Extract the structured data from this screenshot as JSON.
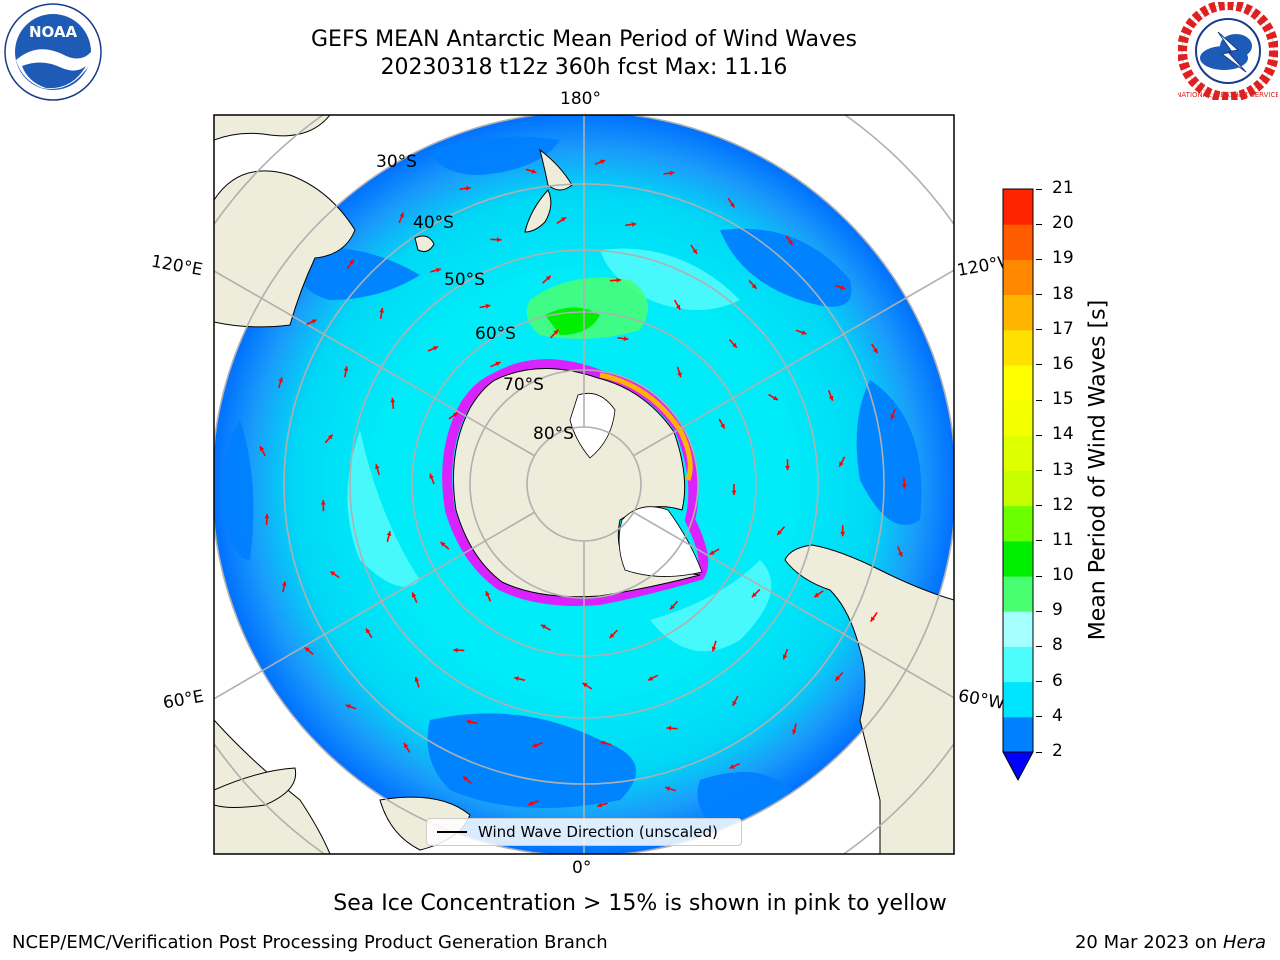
{
  "title": {
    "line1": "GEFS MEAN Antarctic Mean Period of Wind Waves",
    "line2": "20230318 t12z 360h fcst   Max: 11.16"
  },
  "logos": {
    "left": "noaa-logo",
    "left_text": "NOAA",
    "right": "nws-logo",
    "right_text": "NATIONAL WEATHER SERVICE"
  },
  "map": {
    "projection": "south-polar-stereographic",
    "longitude_labels": {
      "top": "180°",
      "bottom": "0°",
      "upper_left": "120°E",
      "upper_right": "120°W",
      "lower_left": "60°E",
      "lower_right": "60°W"
    },
    "latitude_labels": [
      "30°S",
      "40°S",
      "50°S",
      "60°S",
      "70°S",
      "80°S"
    ],
    "colors": {
      "land": "#eeecda",
      "ocean_low": "#0080ff",
      "ocean_mid": "#00ecf8",
      "ocean_light": "#4cfcfc",
      "arrow": "#ff0000",
      "sea_ice_edge": "#ff00ff"
    }
  },
  "legend": {
    "label": "Wind Wave Direction (unscaled)"
  },
  "colorbar": {
    "label": "Mean Period of Wind Waves [s]",
    "ticks": [
      "2",
      "4",
      "6",
      "8",
      "9",
      "10",
      "11",
      "12",
      "13",
      "14",
      "15",
      "16",
      "17",
      "18",
      "19",
      "20",
      "21"
    ],
    "colors": [
      "#0080ff",
      "#00e5ff",
      "#4dfdfd",
      "#a4ffff",
      "#49ff71",
      "#00ef00",
      "#6bff00",
      "#c8ff00",
      "#deff00",
      "#f4ff00",
      "#ffff00",
      "#ffe000",
      "#ffb400",
      "#ff8800",
      "#ff5c00",
      "#ff2400"
    ],
    "extend_color": "#0000ff"
  },
  "caption": "Sea Ice Concentration > 15% is shown in pink to yellow",
  "footer": {
    "left": "NCEP/EMC/Verification Post Processing Product Generation Branch",
    "right_date": "20 Mar 2023 on ",
    "right_machine": "Hera"
  }
}
